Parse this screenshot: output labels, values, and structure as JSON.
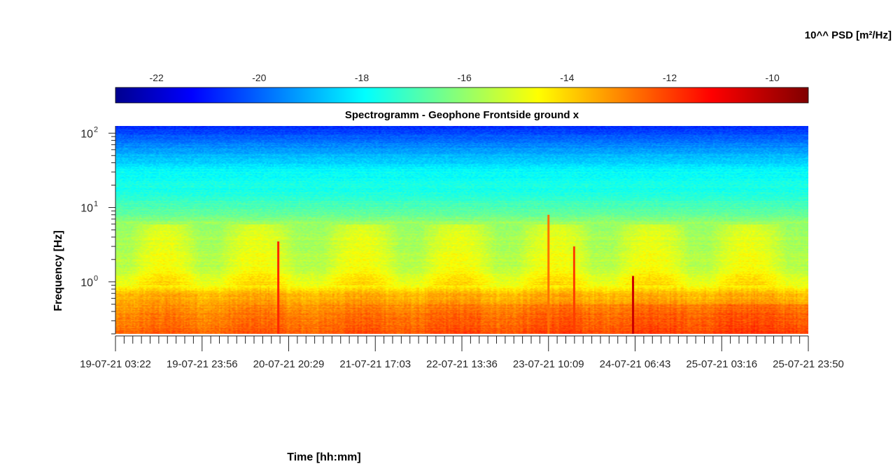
{
  "chart_data": {
    "type": "heatmap",
    "title": "Spectrogramm - Geophone Frontside ground x",
    "xlabel": "Time [hh:mm]",
    "ylabel": "Frequency [Hz]",
    "colorbar": {
      "title": "10^^ PSD [m²/Hz]",
      "location": "top",
      "colormap": "jet",
      "range": [
        -22.8,
        -9.3
      ],
      "ticks": [
        -22,
        -20,
        -18,
        -16,
        -14,
        -12,
        -10
      ],
      "tick_labels": [
        "-22",
        "-20",
        "-18",
        "-16",
        "-14",
        "-12",
        "-10"
      ]
    },
    "x_tick_labels": [
      "19-07-21 03:22",
      "19-07-21 23:56",
      "20-07-21 20:29",
      "21-07-21 17:03",
      "22-07-21 13:36",
      "23-07-21 10:09",
      "24-07-21 06:43",
      "25-07-21 03:16",
      "25-07-21 23:50"
    ],
    "y_scale": "log",
    "y_range_hz": [
      0.2,
      125
    ],
    "y_tick_values": [
      1,
      10,
      100
    ],
    "y_tick_labels": [
      {
        "base": "10",
        "exp": "0"
      },
      {
        "base": "10",
        "exp": "1"
      },
      {
        "base": "10",
        "exp": "2"
      }
    ],
    "psd_profile": [
      {
        "f": 0.2,
        "log_psd": -12.4
      },
      {
        "f": 0.3,
        "log_psd": -12.8
      },
      {
        "f": 0.5,
        "log_psd": -13.2
      },
      {
        "f": 0.7,
        "log_psd": -13.6
      },
      {
        "f": 0.9,
        "log_psd": -14.6
      },
      {
        "f": 1.5,
        "log_psd": -15.3
      },
      {
        "f": 3.0,
        "log_psd": -15.5
      },
      {
        "f": 5.5,
        "log_psd": -15.7
      },
      {
        "f": 6.2,
        "log_psd": -15.6
      },
      {
        "f": 8.0,
        "log_psd": -16.4
      },
      {
        "f": 15,
        "log_psd": -17.3
      },
      {
        "f": 30,
        "log_psd": -17.7
      },
      {
        "f": 60,
        "log_psd": -19.0
      },
      {
        "f": 125,
        "log_psd": -20.6
      }
    ],
    "daytime_windows_fraction": [
      [
        0.04,
        0.1
      ],
      [
        0.17,
        0.24
      ],
      [
        0.32,
        0.39
      ],
      [
        0.46,
        0.53
      ],
      [
        0.6,
        0.67
      ],
      [
        0.74,
        0.81
      ],
      [
        0.88,
        0.95
      ]
    ],
    "transient_events": [
      {
        "x_fraction": 0.235,
        "f_top": 3.5,
        "log_psd": -11.5
      },
      {
        "x_fraction": 0.625,
        "f_top": 8,
        "log_psd": -12.5
      },
      {
        "x_fraction": 0.662,
        "f_top": 3,
        "log_psd": -11.8
      },
      {
        "x_fraction": 0.747,
        "f_top": 1.2,
        "log_psd": -10.3
      }
    ]
  }
}
